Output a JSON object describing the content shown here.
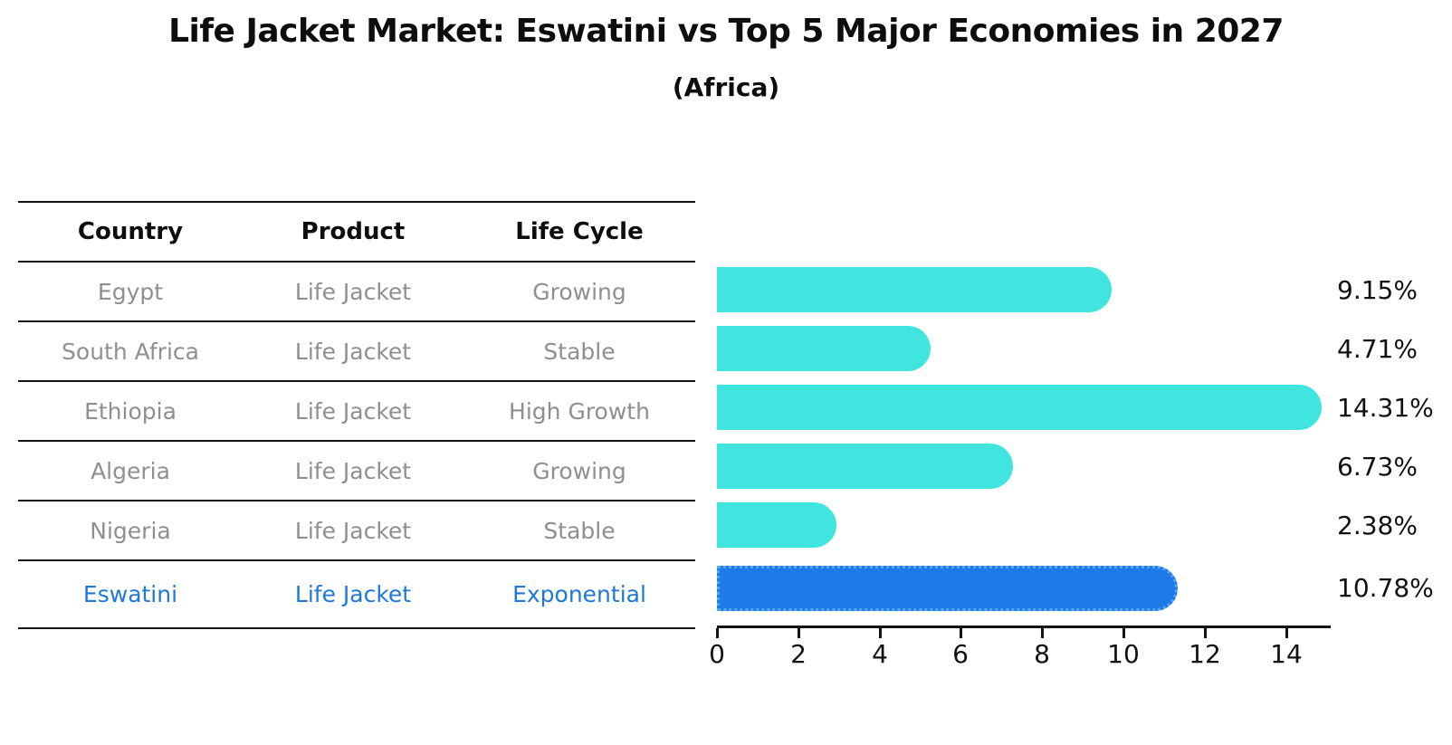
{
  "title": "Life Jacket Market: Eswatini vs Top 5 Major Economies in 2027",
  "subtitle": "(Africa)",
  "table": {
    "headers": [
      "Country",
      "Product",
      "Life Cycle"
    ],
    "rows": [
      {
        "country": "Egypt",
        "product": "Life Jacket",
        "life_cycle": "Growing",
        "highlight": false
      },
      {
        "country": "South Africa",
        "product": "Life Jacket",
        "life_cycle": "Stable",
        "highlight": false
      },
      {
        "country": "Ethiopia",
        "product": "Life Jacket",
        "life_cycle": "High Growth",
        "highlight": false
      },
      {
        "country": "Algeria",
        "product": "Life Jacket",
        "life_cycle": "Growing",
        "highlight": false
      },
      {
        "country": "Nigeria",
        "product": "Life Jacket",
        "life_cycle": "Stable",
        "highlight": false
      },
      {
        "country": "Eswatini",
        "product": "Life Jacket",
        "life_cycle": "Exponential",
        "highlight": true
      }
    ]
  },
  "chart_data": {
    "type": "bar",
    "orientation": "horizontal",
    "title": "Life Jacket Market: Eswatini vs Top 5 Major Economies in 2027",
    "subtitle": "(Africa)",
    "categories": [
      "Egypt",
      "South Africa",
      "Ethiopia",
      "Algeria",
      "Nigeria",
      "Eswatini"
    ],
    "values": [
      9.15,
      4.71,
      14.31,
      6.73,
      2.38,
      10.78
    ],
    "value_labels": [
      "9.15%",
      "4.71%",
      "14.31%",
      "6.73%",
      "2.38%",
      "10.78%"
    ],
    "x_ticks": [
      0,
      2,
      4,
      6,
      8,
      10,
      12,
      14
    ],
    "xlim": [
      0,
      15.1
    ],
    "xlabel": "",
    "ylabel": "",
    "grid": false,
    "legend": false,
    "bar_color": "#40E5DF",
    "highlight_bar_color": "#1E7AE8",
    "highlight_index": 5
  },
  "colors": {
    "bar_cyan": "#40E5DF",
    "bar_blue": "#1E7AE8",
    "highlight_text": "#1D78D8",
    "table_text": "#8F8F8F",
    "heading_text": "#0D0D0D"
  }
}
